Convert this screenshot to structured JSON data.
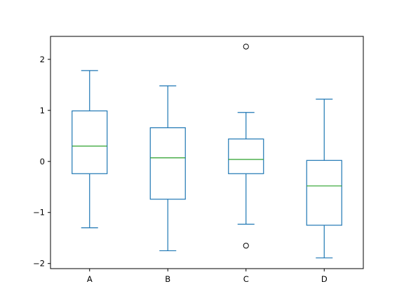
{
  "chart_data": {
    "type": "box",
    "title": "",
    "xlabel": "",
    "ylabel": "",
    "categories": [
      "A",
      "B",
      "C",
      "D"
    ],
    "ylim": [
      -2.1,
      2.45
    ],
    "yticks": [
      -2,
      -1,
      0,
      1,
      2
    ],
    "ytick_labels": [
      "−2",
      "−1",
      "0",
      "1",
      "2"
    ],
    "grid": false,
    "box_color": "#1f77b4",
    "median_color": "#2ca02c",
    "boxes": [
      {
        "name": "A",
        "whisker_low": -1.3,
        "q1": -0.24,
        "median": 0.3,
        "q3": 0.99,
        "whisker_high": 1.78,
        "fliers": []
      },
      {
        "name": "B",
        "whisker_low": -1.75,
        "q1": -0.74,
        "median": 0.07,
        "q3": 0.66,
        "whisker_high": 1.48,
        "fliers": []
      },
      {
        "name": "C",
        "whisker_low": -1.23,
        "q1": -0.24,
        "median": 0.04,
        "q3": 0.44,
        "whisker_high": 0.96,
        "fliers": [
          2.25,
          -1.65
        ]
      },
      {
        "name": "D",
        "whisker_low": -1.89,
        "q1": -1.25,
        "median": -0.48,
        "q3": 0.02,
        "whisker_high": 1.22,
        "fliers": []
      }
    ]
  }
}
